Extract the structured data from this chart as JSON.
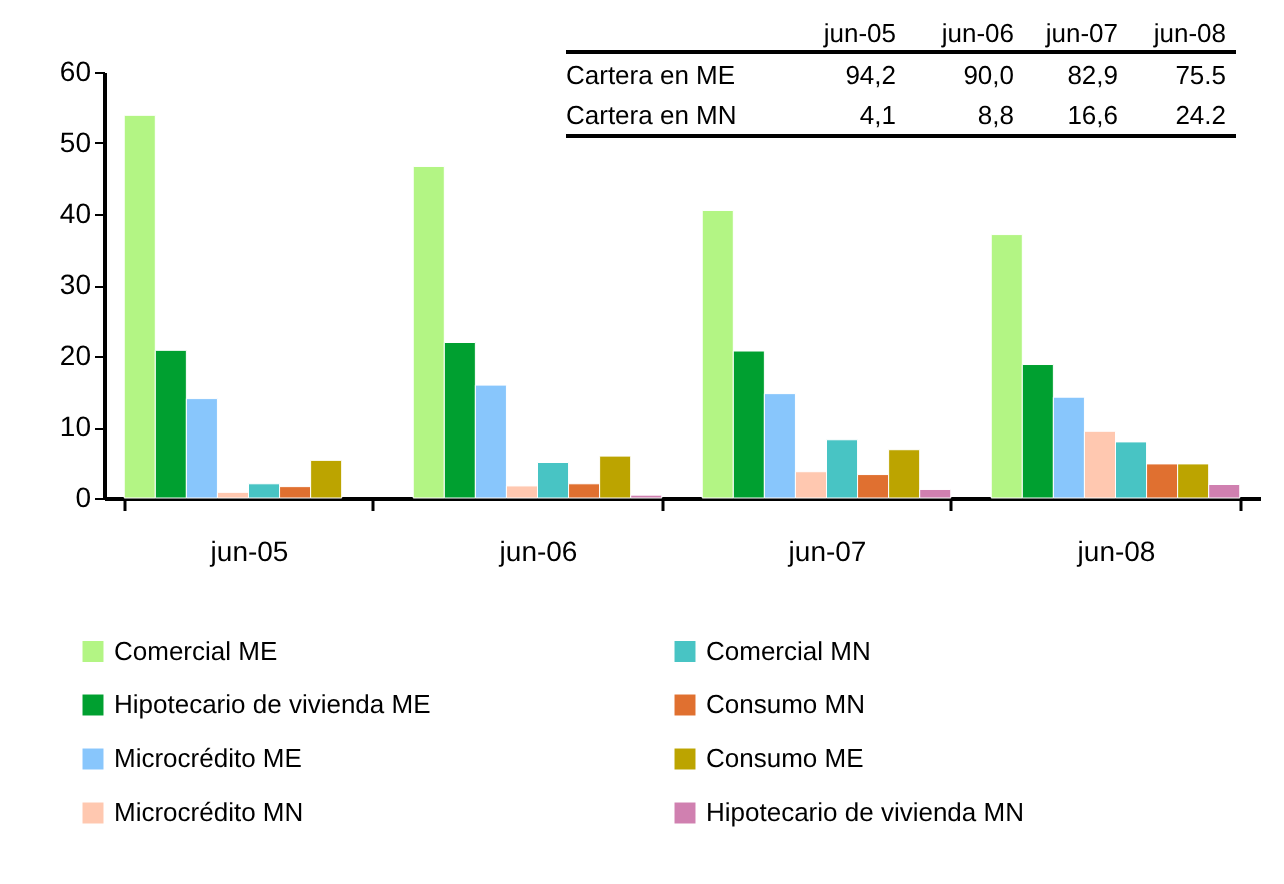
{
  "chart_data": {
    "type": "bar",
    "categories": [
      "jun-05",
      "jun-06",
      "jun-07",
      "jun-08"
    ],
    "series": [
      {
        "name": "Comercial ME",
        "color": "#b3f584",
        "values": [
          53.9,
          46.7,
          40.5,
          37.1
        ]
      },
      {
        "name": "Hipotecario de vivienda ME",
        "color": "#00a030",
        "values": [
          20.8,
          21.9,
          20.7,
          18.8
        ]
      },
      {
        "name": "Microcrédito ME",
        "color": "#88c6fc",
        "values": [
          14.0,
          15.9,
          14.7,
          14.2
        ]
      },
      {
        "name": "Microcrédito MN",
        "color": "#ffc8b0",
        "values": [
          0.8,
          1.7,
          3.7,
          9.4
        ]
      },
      {
        "name": "Comercial MN",
        "color": "#48c4c4",
        "values": [
          2.0,
          5.0,
          8.2,
          7.9
        ]
      },
      {
        "name": "Consumo MN",
        "color": "#e07030",
        "values": [
          1.6,
          2.0,
          3.3,
          4.8
        ]
      },
      {
        "name": "Consumo ME",
        "color": "#bca400",
        "values": [
          5.3,
          5.9,
          6.8,
          4.8
        ]
      },
      {
        "name": "Hipotecario de vivienda MN",
        "color": "#d080b0",
        "values": [
          null,
          0.4,
          1.2,
          1.9
        ]
      }
    ],
    "ylim": [
      0,
      60
    ],
    "yticks": [
      0,
      10,
      20,
      30,
      40,
      50,
      60
    ],
    "grid": false,
    "legend": "bottom",
    "annotations": [
      "jun-05",
      "jun-06",
      "jun-07",
      "jun-08",
      "Cartera en ME",
      "94,2",
      "90,0",
      "82,9",
      "75.5",
      "Cartera en MN",
      "4,1",
      "8,8",
      "16,6",
      "24.2"
    ]
  }
}
